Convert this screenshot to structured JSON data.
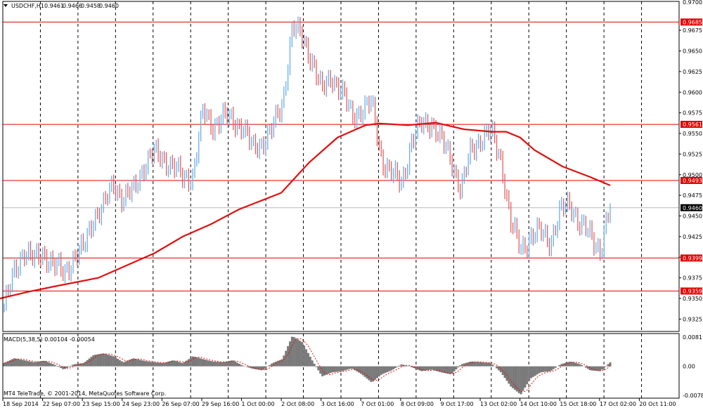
{
  "chart_data": {
    "type": "line",
    "header": {
      "symbol": "USDCHF,H1",
      "open": "0.9461",
      "high": "0.9466",
      "low": "0.9458",
      "close": "0.9460"
    },
    "price_axis": {
      "range": [
        0.931,
        0.971
      ],
      "ticks": [
        "0.9675",
        "0.9650",
        "0.9625",
        "0.9600",
        "0.9575",
        "0.9550",
        "0.9525",
        "0.9500",
        "0.9475",
        "0.9450",
        "0.9425",
        "0.9400",
        "0.9375",
        "0.9350",
        "0.9325"
      ],
      "top_tick_label": "0.9700"
    },
    "levels": [
      {
        "label": "0.9685",
        "value": 0.9685
      },
      {
        "label": "0.9561",
        "value": 0.9561
      },
      {
        "label": "0.9493",
        "value": 0.9493
      },
      {
        "label": "0.9399",
        "value": 0.9399
      },
      {
        "label": "0.9359",
        "value": 0.9359
      }
    ],
    "current_price": {
      "label": "0.9460",
      "value": 0.946
    },
    "time_labels": [
      "18 Sep 2014",
      "22 Sep 07:00",
      "23 Sep 15:00",
      "24 Sep 23:00",
      "26 Sep 07:00",
      "29 Sep 16:00",
      "1 Oct 00:00",
      "2 Oct 08:00",
      "3 Oct 16:00",
      "7 Oct 01:00",
      "8 Oct 09:00",
      "9 Oct 17:00",
      "13 Oct 02:00",
      "14 Oct 10:00",
      "15 Oct 18:00",
      "17 Oct 02:00",
      "20 Oct 11:00"
    ],
    "price_series_anchors": [
      0.934,
      0.938,
      0.941,
      0.9395,
      0.9405,
      0.939,
      0.938,
      0.94,
      0.941,
      0.945,
      0.946,
      0.949,
      0.947,
      0.948,
      0.951,
      0.9525,
      0.952,
      0.951,
      0.9495,
      0.95,
      0.9575,
      0.956,
      0.957,
      0.9565,
      0.956,
      0.953,
      0.954,
      0.9555,
      0.9585,
      0.968,
      0.9665,
      0.964,
      0.96,
      0.962,
      0.96,
      0.957,
      0.958,
      0.9585,
      0.952,
      0.95,
      0.949,
      0.954,
      0.956,
      0.9565,
      0.954,
      0.952,
      0.948,
      0.953,
      0.9545,
      0.955,
      0.952,
      0.944,
      0.941,
      0.9425,
      0.943,
      0.942,
      0.9455,
      0.9465,
      0.944,
      0.9425,
      0.941,
      0.946
    ],
    "moving_average": [
      [
        0,
        0.935
      ],
      [
        40,
        0.9358
      ],
      [
        80,
        0.9365
      ],
      [
        140,
        0.9375
      ],
      [
        180,
        0.939
      ],
      [
        220,
        0.9405
      ],
      [
        260,
        0.9425
      ],
      [
        300,
        0.944
      ],
      [
        340,
        0.9458
      ],
      [
        400,
        0.9478
      ],
      [
        440,
        0.9515
      ],
      [
        480,
        0.9545
      ],
      [
        520,
        0.956
      ],
      [
        540,
        0.9562
      ],
      [
        580,
        0.956
      ],
      [
        620,
        0.9563
      ],
      [
        660,
        0.9555
      ],
      [
        700,
        0.9552
      ],
      [
        720,
        0.9552
      ],
      [
        740,
        0.9545
      ],
      [
        760,
        0.953
      ],
      [
        800,
        0.951
      ],
      [
        840,
        0.9497
      ],
      [
        868,
        0.9487
      ]
    ],
    "macd": {
      "label": "MACD(5,38,5) 0.00104 -0.00054",
      "axis": {
        "top": "0.00811",
        "zero": "0.00",
        "bottom": "-0.00789"
      },
      "range": [
        -0.00789,
        0.00811
      ],
      "histogram_anchors": [
        0.0008,
        0.002,
        0.0015,
        0.001,
        0.0014,
        0.0005,
        -0.0008,
        0.0005,
        0.0008,
        0.0028,
        0.0032,
        0.0025,
        0.001,
        0.002,
        0.0014,
        0.001,
        0.0008,
        0.0015,
        0.0008,
        0.0025,
        0.0018,
        0.0012,
        0.001,
        0.0015,
        0.0002,
        -0.0006,
        -0.001,
        0.0008,
        0.0018,
        0.0075,
        0.006,
        0.0015,
        -0.0025,
        -0.0015,
        -0.0012,
        -0.0005,
        -0.002,
        -0.004,
        -0.002,
        -0.001,
        0.0005,
        -0.0002,
        -0.0012,
        -0.0008,
        -0.0015,
        -0.002,
        0.0005,
        0.0012,
        0.001,
        0.0008,
        -0.0015,
        -0.005,
        -0.007,
        -0.003,
        -0.0015,
        -0.0012,
        0.0005,
        0.0012,
        0.0005,
        -0.001,
        -0.0012,
        0.001
      ]
    }
  },
  "footer": {
    "copyright": "MT4 TeleTrade, © 2001-2014, MetaQuotes Software Corp."
  }
}
